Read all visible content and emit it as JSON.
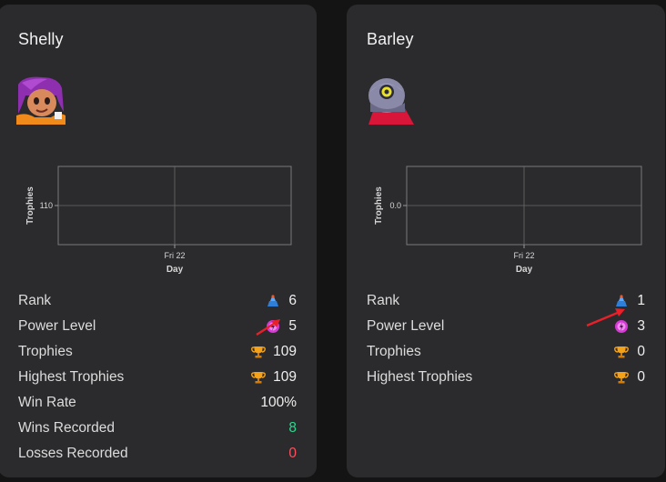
{
  "cards": [
    {
      "name": "Shelly",
      "chart": {
        "ylabel": "Trophies",
        "xlabel": "Day",
        "ytick": "110",
        "xtick": "Fri 22"
      },
      "stats": {
        "rank_label": "Rank",
        "rank_value": "6",
        "power_label": "Power Level",
        "power_value": "5",
        "trophies_label": "Trophies",
        "trophies_value": "109",
        "highest_label": "Highest Trophies",
        "highest_value": "109",
        "winrate_label": "Win Rate",
        "winrate_value": "100%",
        "wins_label": "Wins Recorded",
        "wins_value": "8",
        "losses_label": "Losses Recorded",
        "losses_value": "0"
      }
    },
    {
      "name": "Barley",
      "chart": {
        "ylabel": "Trophies",
        "xlabel": "Day",
        "ytick": "0.0",
        "xtick": "Fri 22"
      },
      "stats": {
        "rank_label": "Rank",
        "rank_value": "1",
        "power_label": "Power Level",
        "power_value": "3",
        "trophies_label": "Trophies",
        "trophies_value": "0",
        "highest_label": "Highest Trophies",
        "highest_value": "0"
      }
    }
  ],
  "icons": {
    "rank": "rank-icon",
    "power": "power-point-icon",
    "trophy": "trophy-icon"
  },
  "colors": {
    "wins": "#2bd98f",
    "losses": "#ff4f5e",
    "arrow": "#e8202a"
  }
}
